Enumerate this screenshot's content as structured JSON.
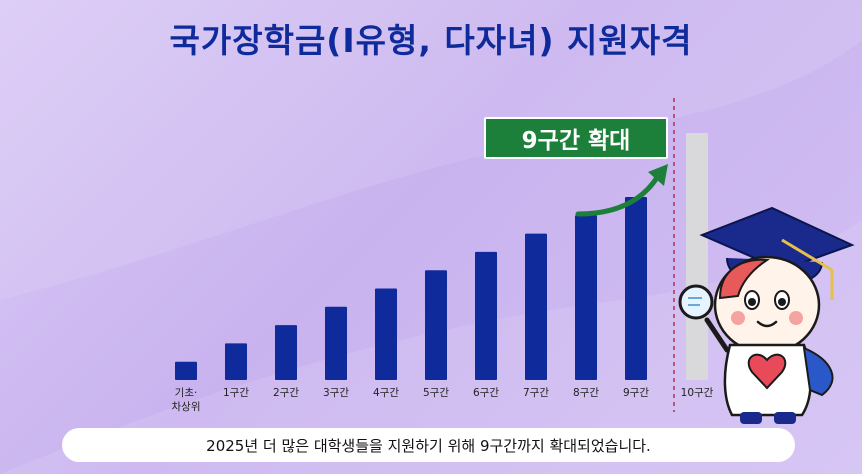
{
  "title": "국가장학금(Ⅰ유형, 다자녀) 지원자격",
  "badge": "9구간 확대",
  "caption": "2025년 더 많은 대학생들을 지원하기 위해 9구간까지 확대되었습니다.",
  "colors": {
    "bar": "#0f2a9a",
    "new_bar": "#d9d9dc",
    "badge": "#1c7f3a",
    "arrow": "#1c7f3a",
    "divider": "#b03050"
  },
  "chart_data": {
    "type": "bar",
    "title": "국가장학금(Ⅰ유형, 다자녀) 지원자격",
    "categories": [
      "기초·\n차상위",
      "1구간",
      "2구간",
      "3구간",
      "4구간",
      "5구간",
      "6구간",
      "7구간",
      "8구간",
      "9구간",
      "10구간"
    ],
    "series": [
      {
        "values": [
          1,
          2,
          3,
          4,
          5,
          6,
          7,
          8,
          9,
          10,
          13.5
        ]
      }
    ],
    "highlight": {
      "category": "10구간",
      "style": "gray, beyond dashed divider"
    },
    "annotation": "9구간 확대",
    "xlabel": "",
    "ylabel": "",
    "axis_values_shown": false,
    "grid": false
  }
}
